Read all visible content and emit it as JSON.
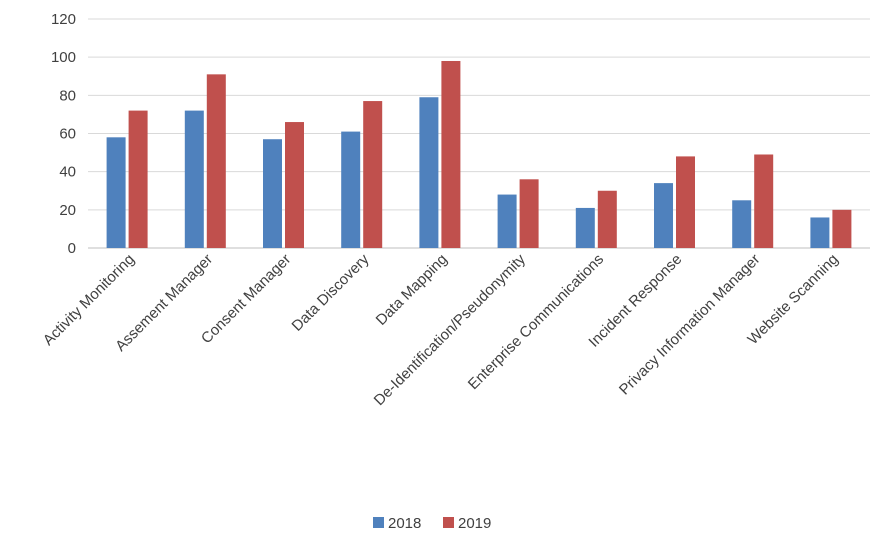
{
  "chart_data": {
    "type": "bar",
    "title": "",
    "xlabel": "",
    "ylabel": "",
    "ylim": [
      0,
      120
    ],
    "yticks": [
      0,
      20,
      40,
      60,
      80,
      100,
      120
    ],
    "grid": true,
    "legend_position": "bottom",
    "categories": [
      "Activity Monitoring",
      "Assement Manager",
      "Consent Manager",
      "Data Discovery",
      "Data Mapping",
      "De-Identification/Pseudonymity",
      "Enterprise Communications",
      "Incident Response",
      "Privacy Information Manager",
      "Website Scanning"
    ],
    "series": [
      {
        "name": "2018",
        "color": "#4f81bd",
        "values": [
          58,
          72,
          57,
          61,
          79,
          28,
          21,
          34,
          25,
          16
        ]
      },
      {
        "name": "2019",
        "color": "#c0504d",
        "values": [
          72,
          91,
          66,
          77,
          98,
          36,
          30,
          48,
          49,
          20
        ]
      }
    ]
  }
}
